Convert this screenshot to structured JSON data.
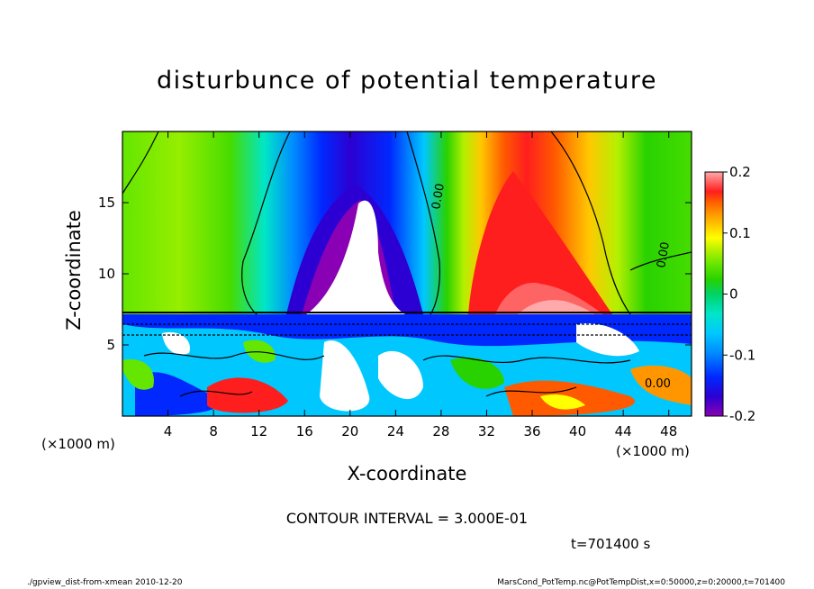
{
  "title": "disturbunce of potential temperature",
  "xlabel": "X-coordinate",
  "ylabel": "Z-coordinate",
  "xunit_left": "(×1000 m)",
  "xunit_right": "(×1000 m)",
  "contour_interval": "CONTOUR INTERVAL = 3.000E-01",
  "time_label": "t=701400 s",
  "footer_left": "./gpview_dist-from-xmean  2010-12-20",
  "footer_right": "MarsCond_PotTemp.nc@PotTempDist,x=0:50000,z=0:20000,t=701400",
  "chart_data": {
    "type": "heatmap",
    "title": "disturbunce of potential temperature",
    "xlabel": "X-coordinate",
    "ylabel": "Z-coordinate",
    "xlim": [
      0,
      50
    ],
    "ylim": [
      0,
      20
    ],
    "x_ticks": [
      4,
      8,
      12,
      16,
      20,
      24,
      28,
      32,
      36,
      40,
      44,
      48
    ],
    "y_ticks": [
      5,
      10,
      15
    ],
    "contour_labels": [
      "0.00",
      "0.00",
      "0.00"
    ],
    "colorbar": {
      "range": [
        -0.2,
        0.2
      ],
      "ticks": [
        "0.2",
        "0.1",
        "0",
        "-0.1",
        "-0.2"
      ],
      "tick_values": [
        0.2,
        0.1,
        0,
        -0.1,
        -0.2
      ],
      "colors": [
        "#8a00b4",
        "#2c00d2",
        "#0028ff",
        "#008cff",
        "#00c8ff",
        "#00e6c8",
        "#00d264",
        "#28d200",
        "#64e600",
        "#b4f000",
        "#ffff00",
        "#ffc800",
        "#ff9600",
        "#ff5a00",
        "#ff1e1e",
        "#ff6464",
        "#ffaaaa"
      ]
    },
    "features": {
      "cold_plume_center_x": 20,
      "warm_plume_center_x": 35,
      "layer_boundary_z": 7.5,
      "cold_anomaly_max_z": 15
    }
  }
}
